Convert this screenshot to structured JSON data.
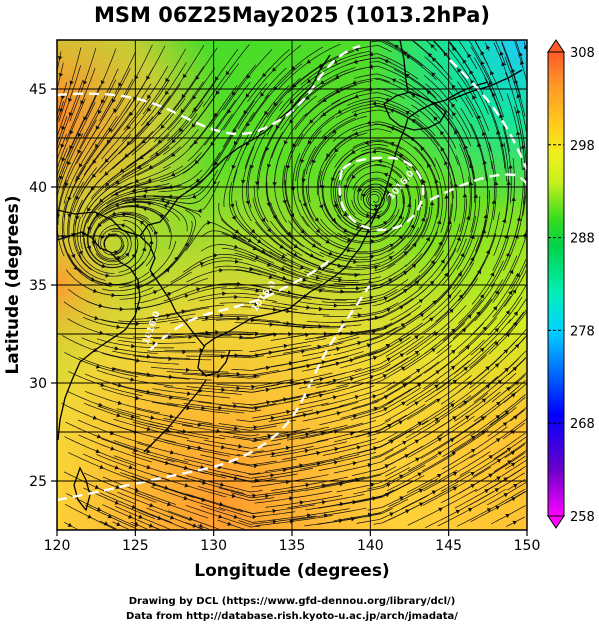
{
  "title": "MSM 06Z25May2025 (1013.2hPa)",
  "xlabel": "Longitude (degrees)",
  "ylabel": "Latitude  (degrees)",
  "x_ticks": [
    "120",
    "125",
    "130",
    "135",
    "140",
    "145",
    "150"
  ],
  "y_ticks": [
    "25",
    "30",
    "35",
    "40",
    "45"
  ],
  "colorbar": {
    "ticks": [
      "258",
      "268",
      "278",
      "288",
      "298",
      "308"
    ],
    "colors": [
      "#ff00ff",
      "#6a00c8",
      "#0000ff",
      "#0077ff",
      "#00d2ff",
      "#00f0b8",
      "#00d24a",
      "#37dd1e",
      "#c8f01e",
      "#f0f01e",
      "#ffc81e",
      "#ff9628",
      "#ff5a28"
    ]
  },
  "credits": {
    "line1": "Drawing by DCL (https://www.gfd-dennou.org/library/dcl/)",
    "line2": "Data from http://database.rish.kyoto-u.ac.jp/arch/jmadata/"
  },
  "map": {
    "lon_range": [
      120,
      150
    ],
    "lat_range": [
      22.5,
      47.5
    ],
    "isobar_labels": [
      "1016.0",
      "1016.0",
      "1016.0"
    ]
  }
}
